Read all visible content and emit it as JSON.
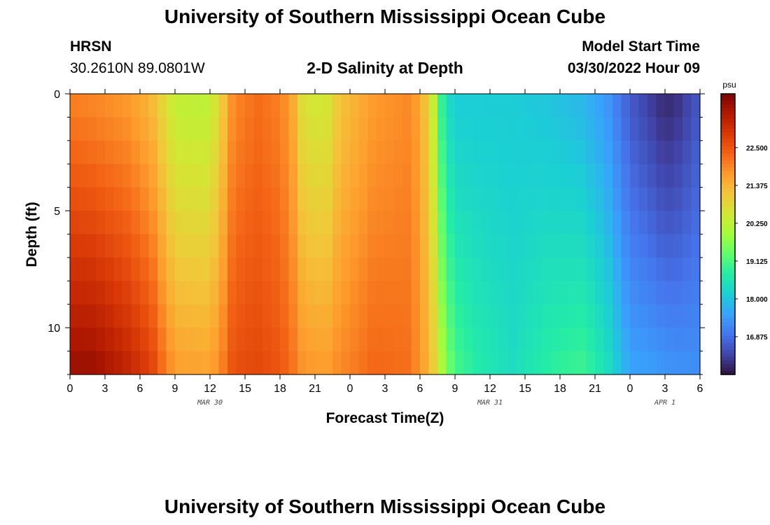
{
  "header": {
    "title": "University of Southern Mississippi Ocean Cube",
    "station": "HRSN",
    "coords": "30.2610N  89.0801W",
    "subtitle": "2-D Salinity at Depth",
    "model_start_label": "Model Start Time",
    "model_start_value": "03/30/2022 Hour 09"
  },
  "footer": {
    "title": "University of Southern Mississippi Ocean Cube"
  },
  "colors": {
    "background": "#ffffff",
    "axis": "#000000",
    "colormap": [
      "#30123b",
      "#4145ab",
      "#4675ed",
      "#39a2fc",
      "#1bcfd4",
      "#24eca6",
      "#61fc6c",
      "#a4fc3b",
      "#d1e834",
      "#f3c63a",
      "#fe9b2d",
      "#f36315",
      "#d93806",
      "#b11901",
      "#7a0402"
    ]
  },
  "chart_data": {
    "type": "heatmap",
    "title": "2-D Salinity at Depth",
    "xlabel": "Forecast Time(Z)",
    "ylabel": "Depth (ft)",
    "x_tick_labels": [
      "0",
      "3",
      "6",
      "9",
      "12",
      "15",
      "18",
      "21",
      "0",
      "3",
      "6",
      "9",
      "12",
      "15",
      "18",
      "21",
      "0",
      "3",
      "6"
    ],
    "date_labels": [
      {
        "label": "MAR 30",
        "at_hour": 12
      },
      {
        "label": "MAR 31",
        "at_hour": 36
      },
      {
        "label": "APR 1",
        "at_hour": 51
      }
    ],
    "x_range_hours": [
      0,
      54
    ],
    "x_units": "hours since 03/30/2022 00Z",
    "y_tick_labels": [
      "0",
      "5",
      "10"
    ],
    "y_range_ft": [
      0,
      12
    ],
    "y_direction": "down",
    "colorbar": {
      "units": "psu",
      "range": [
        15.75,
        24.1
      ],
      "tick_values": [
        16.875,
        18.0,
        19.125,
        20.25,
        21.375,
        22.5
      ],
      "tick_labels": [
        "16.875",
        "18.000",
        "19.125",
        "20.250",
        "21.375",
        "22.500"
      ]
    },
    "surface_profile_psu": [
      {
        "hour": 0,
        "value": 22.0
      },
      {
        "hour": 2,
        "value": 21.9
      },
      {
        "hour": 5,
        "value": 21.7
      },
      {
        "hour": 7,
        "value": 21.3
      },
      {
        "hour": 8,
        "value": 20.8
      },
      {
        "hour": 9,
        "value": 20.3
      },
      {
        "hour": 12,
        "value": 20.25
      },
      {
        "hour": 13,
        "value": 21.0
      },
      {
        "hour": 14,
        "value": 21.9
      },
      {
        "hour": 16,
        "value": 22.2
      },
      {
        "hour": 18,
        "value": 22.0
      },
      {
        "hour": 19,
        "value": 21.6
      },
      {
        "hour": 20,
        "value": 20.6
      },
      {
        "hour": 22,
        "value": 20.5
      },
      {
        "hour": 23,
        "value": 21.1
      },
      {
        "hour": 26,
        "value": 21.7
      },
      {
        "hour": 29,
        "value": 21.9
      },
      {
        "hour": 30,
        "value": 21.6
      },
      {
        "hour": 31,
        "value": 20.6
      },
      {
        "hour": 31.5,
        "value": 19.6
      },
      {
        "hour": 32,
        "value": 18.6
      },
      {
        "hour": 33,
        "value": 18.1
      },
      {
        "hour": 38,
        "value": 18.1
      },
      {
        "hour": 41,
        "value": 18.0
      },
      {
        "hour": 44,
        "value": 17.8
      },
      {
        "hour": 46,
        "value": 17.4
      },
      {
        "hour": 48,
        "value": 16.6
      },
      {
        "hour": 50,
        "value": 16.2
      },
      {
        "hour": 51,
        "value": 16.0
      },
      {
        "hour": 52,
        "value": 16.1
      },
      {
        "hour": 54,
        "value": 16.6
      }
    ],
    "bottom_profile_psu": [
      {
        "hour": 0,
        "value": 23.8
      },
      {
        "hour": 2,
        "value": 23.8
      },
      {
        "hour": 5,
        "value": 23.3
      },
      {
        "hour": 7,
        "value": 22.8
      },
      {
        "hour": 8,
        "value": 22.2
      },
      {
        "hour": 9,
        "value": 21.7
      },
      {
        "hour": 12,
        "value": 21.6
      },
      {
        "hour": 13,
        "value": 22.0
      },
      {
        "hour": 14,
        "value": 22.6
      },
      {
        "hour": 16,
        "value": 22.7
      },
      {
        "hour": 18,
        "value": 22.5
      },
      {
        "hour": 19,
        "value": 22.2
      },
      {
        "hour": 20,
        "value": 21.8
      },
      {
        "hour": 22,
        "value": 21.7
      },
      {
        "hour": 23,
        "value": 21.9
      },
      {
        "hour": 26,
        "value": 22.3
      },
      {
        "hour": 29,
        "value": 22.2
      },
      {
        "hour": 30,
        "value": 21.8
      },
      {
        "hour": 31,
        "value": 21.2
      },
      {
        "hour": 31.5,
        "value": 20.6
      },
      {
        "hour": 32,
        "value": 19.9
      },
      {
        "hour": 33,
        "value": 19.1
      },
      {
        "hour": 35,
        "value": 18.7
      },
      {
        "hour": 38,
        "value": 18.4
      },
      {
        "hour": 41,
        "value": 18.8
      },
      {
        "hour": 44,
        "value": 19.0
      },
      {
        "hour": 46,
        "value": 18.5
      },
      {
        "hour": 48,
        "value": 17.6
      },
      {
        "hour": 50,
        "value": 17.5
      },
      {
        "hour": 51,
        "value": 17.4
      },
      {
        "hour": 54,
        "value": 17.3
      }
    ],
    "time_steps": 72,
    "depth_levels": 12
  }
}
